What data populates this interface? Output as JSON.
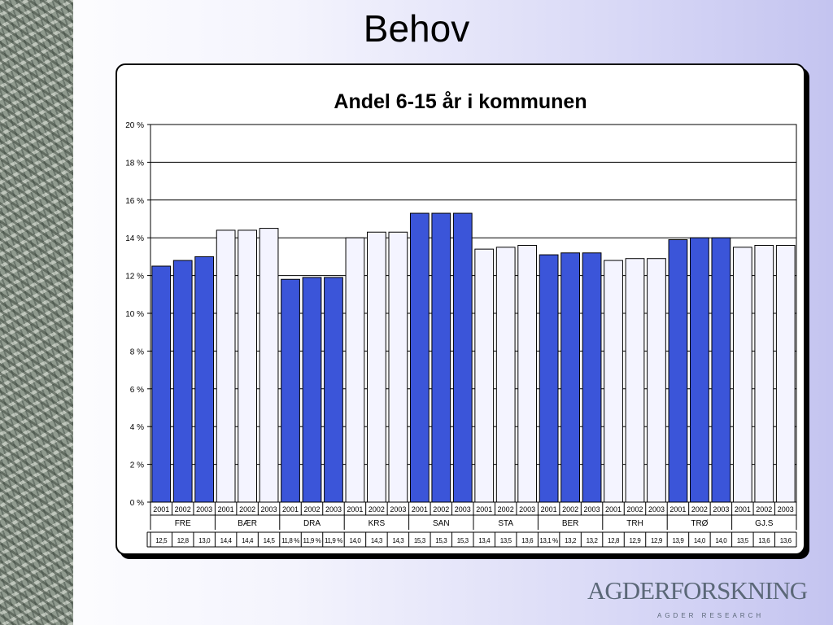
{
  "slide": {
    "title": "Behov"
  },
  "logo": {
    "wordmark": "AGDERFORSKNING",
    "tagline": "AGDER RESEARCH"
  },
  "colors": {
    "dark_fill": "#3b55d9",
    "light_fill": "#f4f4ff",
    "bar_stroke": "#000000",
    "background_accent": "#c4c4f0"
  },
  "chart_data": {
    "type": "bar",
    "title": "Andel 6-15 år i kommunen",
    "xlabel": "",
    "ylabel": "",
    "ylim": [
      0,
      20
    ],
    "yticks": [
      0,
      2,
      4,
      6,
      8,
      10,
      12,
      14,
      16,
      18,
      20
    ],
    "ytick_labels": [
      "0 %",
      "2 %",
      "4 %",
      "6 %",
      "8 %",
      "10 %",
      "12 %",
      "14 %",
      "16 %",
      "18 %",
      "20 %"
    ],
    "grid": true,
    "legend": "none",
    "years": [
      "2001",
      "2002",
      "2003"
    ],
    "groups": [
      {
        "name": "FRE",
        "style": "dark",
        "values": [
          12.5,
          12.8,
          13.0
        ],
        "labels": [
          "12,5",
          "12,8",
          "13,0"
        ]
      },
      {
        "name": "BÆR",
        "style": "light",
        "values": [
          14.4,
          14.4,
          14.5
        ],
        "labels": [
          "14,4",
          "14,4",
          "14,5"
        ]
      },
      {
        "name": "DRA",
        "style": "dark",
        "values": [
          11.8,
          11.9,
          11.9
        ],
        "labels": [
          "11,8 %",
          "11,9 %",
          "11,9 %"
        ]
      },
      {
        "name": "KRS",
        "style": "light",
        "values": [
          14.0,
          14.3,
          14.3
        ],
        "labels": [
          "14,0",
          "14,3",
          "14,3"
        ]
      },
      {
        "name": "SAN",
        "style": "dark",
        "values": [
          15.3,
          15.3,
          15.3
        ],
        "labels": [
          "15,3",
          "15,3",
          "15,3"
        ]
      },
      {
        "name": "STA",
        "style": "light",
        "values": [
          13.4,
          13.5,
          13.6
        ],
        "labels": [
          "13,4",
          "13,5",
          "13,6"
        ]
      },
      {
        "name": "BER",
        "style": "dark",
        "values": [
          13.1,
          13.2,
          13.2
        ],
        "labels": [
          "13,1 %",
          "13,2",
          "13,2"
        ]
      },
      {
        "name": "TRH",
        "style": "light",
        "values": [
          12.8,
          12.9,
          12.9
        ],
        "labels": [
          "12,8",
          "12,9",
          "12,9"
        ]
      },
      {
        "name": "TRØ",
        "style": "dark",
        "values": [
          13.9,
          14.0,
          14.0
        ],
        "labels": [
          "13,9",
          "14,0",
          "14,0"
        ]
      },
      {
        "name": "GJ.S",
        "style": "light",
        "values": [
          13.5,
          13.6,
          13.6
        ],
        "labels": [
          "13,5",
          "13,6",
          "13,6"
        ]
      }
    ]
  }
}
